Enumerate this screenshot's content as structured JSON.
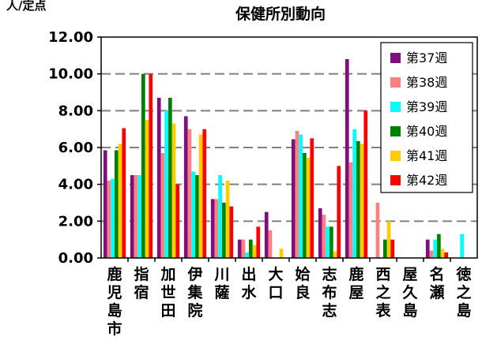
{
  "chart_data": {
    "type": "bar",
    "title": "保健所別動向",
    "ylabel": "人/定点",
    "ylim": [
      0,
      12
    ],
    "yticks": [
      "0.00",
      "2.00",
      "4.00",
      "6.00",
      "8.00",
      "10.00",
      "12.00"
    ],
    "grid": true,
    "legend_position": "right",
    "categories": [
      "鹿児島市",
      "指宿",
      "加世田",
      "伊集院",
      "川薩",
      "出水",
      "大口",
      "姶良",
      "志布志",
      "鹿屋",
      "西之表",
      "屋久島",
      "名瀬",
      "徳之島"
    ],
    "series": [
      {
        "name": "第37週",
        "color": "#7f0f7e",
        "values": [
          5.85,
          4.5,
          8.7,
          7.7,
          3.2,
          1.0,
          2.5,
          6.45,
          2.7,
          10.8,
          0,
          0,
          1.0,
          0
        ]
      },
      {
        "name": "第38週",
        "color": "#ff8080",
        "values": [
          4.2,
          4.5,
          5.7,
          7.0,
          3.2,
          1.0,
          1.5,
          6.9,
          2.35,
          5.2,
          3.0,
          0,
          0.4,
          0
        ]
      },
      {
        "name": "第39週",
        "color": "#00ffff",
        "values": [
          4.3,
          4.5,
          8.0,
          4.7,
          4.5,
          0.3,
          0,
          6.7,
          1.7,
          7.0,
          0,
          0,
          1.0,
          1.3
        ]
      },
      {
        "name": "第40週",
        "color": "#008000",
        "values": [
          5.85,
          10.0,
          8.7,
          4.5,
          3.0,
          1.0,
          0,
          5.7,
          1.7,
          6.35,
          1.0,
          0,
          1.3,
          0
        ]
      },
      {
        "name": "第41週",
        "color": "#ffcc00",
        "values": [
          6.2,
          7.5,
          7.3,
          6.7,
          4.2,
          0.7,
          0.5,
          5.45,
          0.35,
          6.2,
          2.0,
          0,
          0.5,
          0
        ]
      },
      {
        "name": "第42週",
        "color": "#ff0000",
        "values": [
          7.05,
          10.0,
          4.0,
          7.0,
          2.8,
          1.7,
          0,
          6.5,
          5.0,
          8.0,
          1.0,
          0,
          0.3,
          0
        ]
      }
    ]
  }
}
